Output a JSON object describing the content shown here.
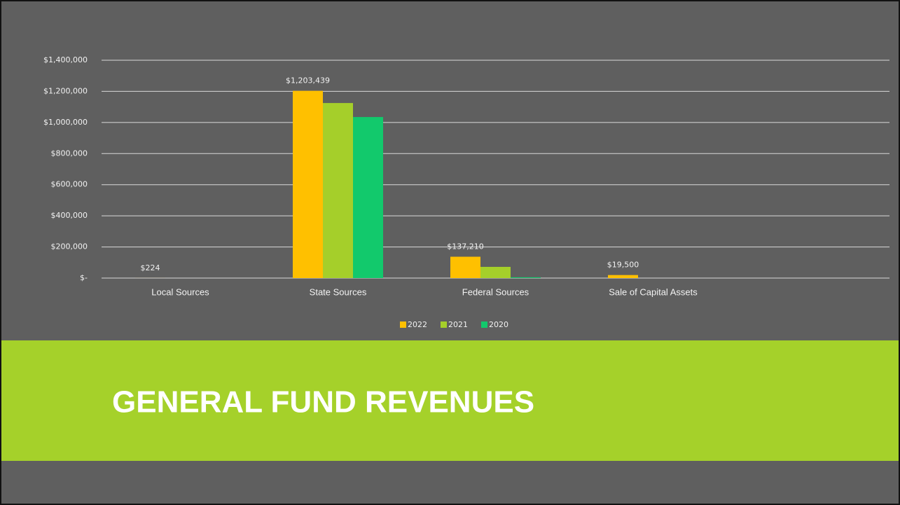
{
  "chart_data": {
    "type": "bar",
    "title": "GENERAL FUND REVENUES",
    "categories": [
      "Local Sources",
      "State Sources",
      "Federal Sources",
      "Sale of Capital Assets",
      null
    ],
    "series": [
      {
        "name": "2022",
        "color": "#ffc000",
        "values": [
          224,
          1203439,
          137210,
          19500,
          null
        ],
        "value_labels": [
          "$224",
          "$1,203,439",
          "$137,210",
          "$19,500",
          null
        ]
      },
      {
        "name": "2021",
        "color": "#a5cf2a",
        "values": [
          0,
          1125000,
          72000,
          0,
          null
        ]
      },
      {
        "name": "2020",
        "color": "#12c96c",
        "values": [
          0,
          1035000,
          5000,
          0,
          null
        ]
      }
    ],
    "ylim": [
      0,
      1400000
    ],
    "yticks": [
      {
        "value": 0,
        "label": "$-"
      },
      {
        "value": 200000,
        "label": "$200,000"
      },
      {
        "value": 400000,
        "label": "$400,000"
      },
      {
        "value": 600000,
        "label": "$600,000"
      },
      {
        "value": 800000,
        "label": "$800,000"
      },
      {
        "value": 1000000,
        "label": "$1,000,000"
      },
      {
        "value": 1200000,
        "label": "$1,200,000"
      },
      {
        "value": 1400000,
        "label": "$1,400,000"
      }
    ],
    "grid": true,
    "legend": "bottom"
  }
}
